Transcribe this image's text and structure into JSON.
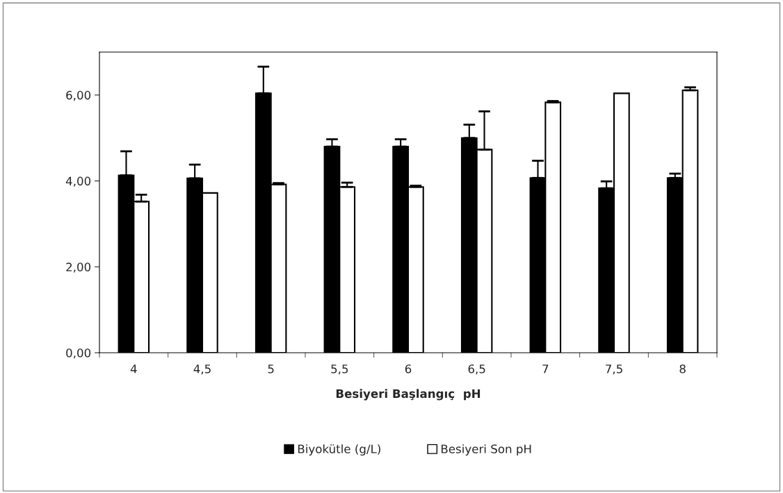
{
  "chart_data": {
    "type": "bar",
    "xlabel": "Besiyeri Başlangıç  pH",
    "categories": [
      "4",
      "4,5",
      "5",
      "5,5",
      "6",
      "6,5",
      "7",
      "7,5",
      "8"
    ],
    "series": [
      {
        "name": "Biyokütle (g/L)",
        "color": "#000000",
        "values": [
          4.13,
          4.06,
          6.04,
          4.8,
          4.8,
          5.0,
          4.07,
          3.83,
          4.07
        ],
        "errors": [
          0.56,
          0.32,
          0.62,
          0.17,
          0.17,
          0.31,
          0.4,
          0.16,
          0.1
        ]
      },
      {
        "name": "Besiyeri Son pH",
        "color": "#ffffff",
        "values": [
          3.52,
          3.72,
          3.92,
          3.86,
          3.86,
          4.73,
          5.83,
          6.04,
          6.11
        ],
        "errors": [
          0.16,
          null,
          0.03,
          0.1,
          0.03,
          0.89,
          0.03,
          null,
          0.07
        ]
      }
    ],
    "ylim": [
      0,
      7
    ],
    "yticks": [
      {
        "value": 0,
        "label": "0,00"
      },
      {
        "value": 2,
        "label": "2,00"
      },
      {
        "value": 4,
        "label": "4,00"
      },
      {
        "value": 6,
        "label": "6,00"
      }
    ],
    "legend": "bottom",
    "grid": false
  }
}
